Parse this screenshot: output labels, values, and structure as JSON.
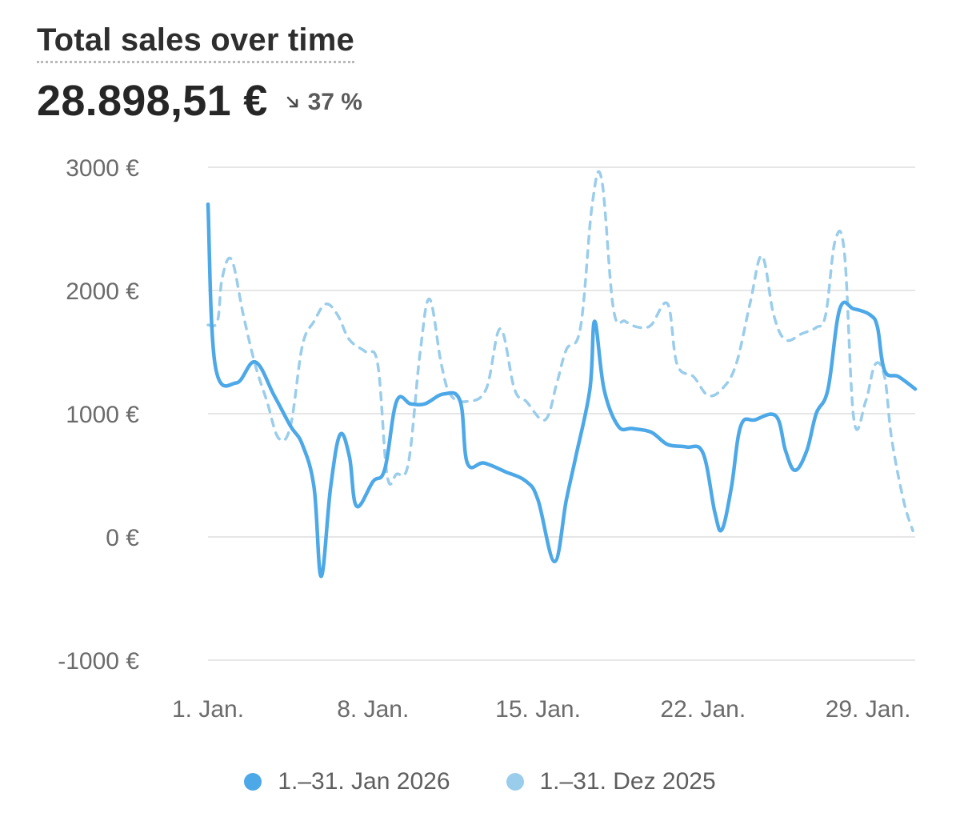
{
  "header": {
    "title": "Total sales over time",
    "total_value": "28.898,51 €",
    "change_text": "37 %",
    "change_icon": "arrow-down-right-icon"
  },
  "colors": {
    "current": "#4DA8E8",
    "previous": "#9ACDEB",
    "grid": "#e6e6e6",
    "axis_text": "#6b6b6b"
  },
  "chart_data": {
    "type": "line",
    "title": "Total sales over time",
    "ylim": [
      -1000,
      3000
    ],
    "yticks": [
      3000,
      2000,
      1000,
      0,
      -1000
    ],
    "ytick_labels": [
      "3000 €",
      "2000 €",
      "1000 €",
      "0 €",
      "-1000 €"
    ],
    "xlim": [
      1,
      31
    ],
    "xticks": [
      1,
      8,
      15,
      22,
      29
    ],
    "xtick_labels": [
      "1. Jan.",
      "8. Jan.",
      "15. Jan.",
      "22. Jan.",
      "29. Jan."
    ],
    "grid": true,
    "legend_position": "bottom",
    "series": [
      {
        "name": "1.–31. Jan 2026",
        "style": "solid",
        "points": [
          [
            1.0,
            2700
          ],
          [
            1.3,
            1400
          ],
          [
            2.2,
            1250
          ],
          [
            3.0,
            1420
          ],
          [
            3.8,
            1150
          ],
          [
            4.5,
            900
          ],
          [
            5.0,
            750
          ],
          [
            5.5,
            400
          ],
          [
            5.8,
            -320
          ],
          [
            6.2,
            400
          ],
          [
            6.6,
            830
          ],
          [
            7.0,
            650
          ],
          [
            7.3,
            250
          ],
          [
            8.0,
            450
          ],
          [
            8.5,
            550
          ],
          [
            9.0,
            1100
          ],
          [
            9.6,
            1080
          ],
          [
            10.2,
            1080
          ],
          [
            11.0,
            1160
          ],
          [
            11.7,
            1100
          ],
          [
            12.0,
            600
          ],
          [
            12.7,
            600
          ],
          [
            13.6,
            530
          ],
          [
            14.5,
            450
          ],
          [
            15.0,
            300
          ],
          [
            15.7,
            -200
          ],
          [
            16.2,
            300
          ],
          [
            16.6,
            650
          ],
          [
            17.2,
            1200
          ],
          [
            17.4,
            1750
          ],
          [
            17.8,
            1200
          ],
          [
            18.4,
            900
          ],
          [
            19.0,
            880
          ],
          [
            19.8,
            850
          ],
          [
            20.5,
            750
          ],
          [
            21.3,
            730
          ],
          [
            22.0,
            680
          ],
          [
            22.5,
            200
          ],
          [
            22.8,
            60
          ],
          [
            23.2,
            400
          ],
          [
            23.6,
            900
          ],
          [
            24.2,
            950
          ],
          [
            25.1,
            980
          ],
          [
            25.5,
            700
          ],
          [
            25.9,
            540
          ],
          [
            26.4,
            700
          ],
          [
            26.8,
            1000
          ],
          [
            27.3,
            1200
          ],
          [
            27.8,
            1850
          ],
          [
            28.4,
            1850
          ],
          [
            29.1,
            1800
          ],
          [
            29.4,
            1700
          ],
          [
            29.7,
            1350
          ],
          [
            30.3,
            1300
          ],
          [
            31.0,
            1200
          ]
        ]
      },
      {
        "name": "1.–31. Dez 2025",
        "style": "dashed",
        "points": [
          [
            1.0,
            1720
          ],
          [
            1.4,
            1750
          ],
          [
            1.6,
            2100
          ],
          [
            2.0,
            2250
          ],
          [
            2.5,
            1800
          ],
          [
            3.0,
            1400
          ],
          [
            3.5,
            1100
          ],
          [
            4.0,
            800
          ],
          [
            4.5,
            900
          ],
          [
            5.0,
            1550
          ],
          [
            5.5,
            1750
          ],
          [
            6.0,
            1890
          ],
          [
            6.5,
            1800
          ],
          [
            7.0,
            1600
          ],
          [
            7.7,
            1500
          ],
          [
            8.2,
            1400
          ],
          [
            8.6,
            500
          ],
          [
            9.0,
            510
          ],
          [
            9.5,
            600
          ],
          [
            10.0,
            1500
          ],
          [
            10.4,
            1930
          ],
          [
            10.9,
            1400
          ],
          [
            11.3,
            1150
          ],
          [
            12.0,
            1100
          ],
          [
            12.8,
            1200
          ],
          [
            13.4,
            1690
          ],
          [
            14.0,
            1200
          ],
          [
            14.5,
            1100
          ],
          [
            15.3,
            950
          ],
          [
            15.8,
            1250
          ],
          [
            16.2,
            1520
          ],
          [
            16.8,
            1700
          ],
          [
            17.3,
            2700
          ],
          [
            17.7,
            2900
          ],
          [
            18.2,
            1850
          ],
          [
            18.7,
            1750
          ],
          [
            19.3,
            1700
          ],
          [
            19.8,
            1720
          ],
          [
            20.5,
            1890
          ],
          [
            20.9,
            1400
          ],
          [
            21.6,
            1300
          ],
          [
            22.2,
            1150
          ],
          [
            22.8,
            1200
          ],
          [
            23.4,
            1400
          ],
          [
            24.0,
            1900
          ],
          [
            24.5,
            2280
          ],
          [
            25.0,
            1800
          ],
          [
            25.5,
            1600
          ],
          [
            26.2,
            1650
          ],
          [
            26.8,
            1700
          ],
          [
            27.2,
            1800
          ],
          [
            27.6,
            2400
          ],
          [
            28.0,
            2300
          ],
          [
            28.4,
            950
          ],
          [
            28.9,
            1100
          ],
          [
            29.3,
            1400
          ],
          [
            29.7,
            1300
          ],
          [
            30.0,
            800
          ],
          [
            30.5,
            300
          ],
          [
            30.9,
            50
          ]
        ]
      }
    ]
  },
  "legend": {
    "items": [
      {
        "label": "1.–31. Jan 2026",
        "color": "#4DA8E8"
      },
      {
        "label": "1.–31. Dez 2025",
        "color": "#9ACDEB"
      }
    ]
  }
}
